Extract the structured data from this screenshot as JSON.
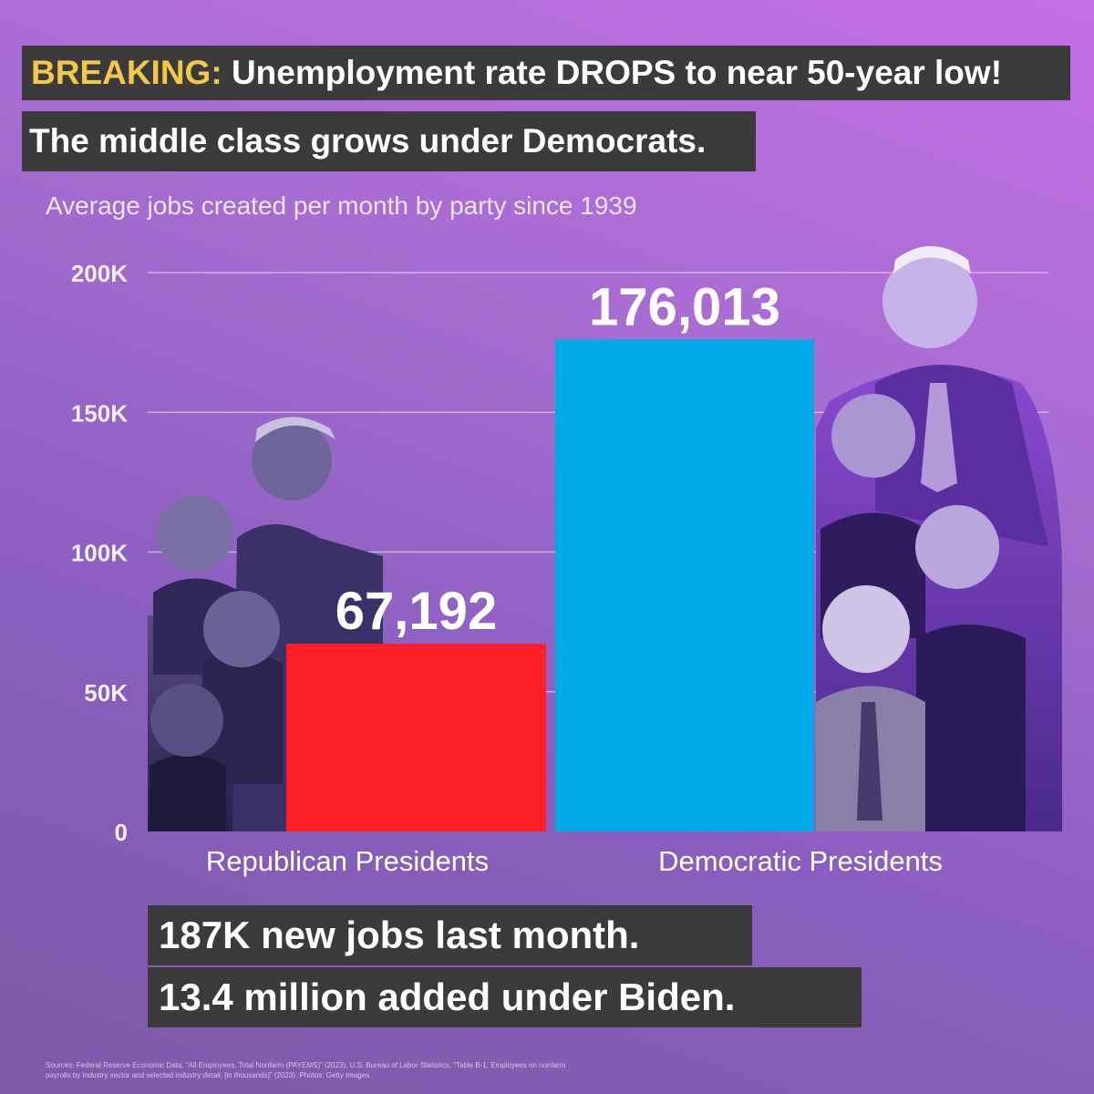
{
  "headline": {
    "keyword": "BREAKING:",
    "text": "Unemployment rate DROPS to near 50-year low!"
  },
  "subhead": "The middle class grows under Democrats.",
  "chart_data": {
    "type": "bar",
    "title": "Average jobs created per month by party since 1939",
    "categories": [
      "Republican Presidents",
      "Democratic Presidents"
    ],
    "values": [
      67192,
      176013
    ],
    "value_labels": [
      "67,192",
      "176,013"
    ],
    "colors": [
      "#ff1f26",
      "#00a9e8"
    ],
    "yticks": [
      0,
      50000,
      100000,
      150000,
      200000
    ],
    "ytick_labels": [
      "0",
      "50K",
      "100K",
      "150K",
      "200K"
    ],
    "ylim": [
      0,
      200000
    ],
    "grid": true,
    "xlabel": "",
    "ylabel": ""
  },
  "footer": {
    "line1": "187K new jobs last month.",
    "line2": "13.4 million added under Biden."
  },
  "sources": "Sources: Federal Reserve Economic Data, “All Employees, Total Nonfarm (PAYEMS)” (2023); U.S. Bureau of Labor Statistics, “Table B-1. Employees on nonfarm payrolls by industry sector and selected industry detail, [in thousands]” (2023). Photos: Getty Images."
}
